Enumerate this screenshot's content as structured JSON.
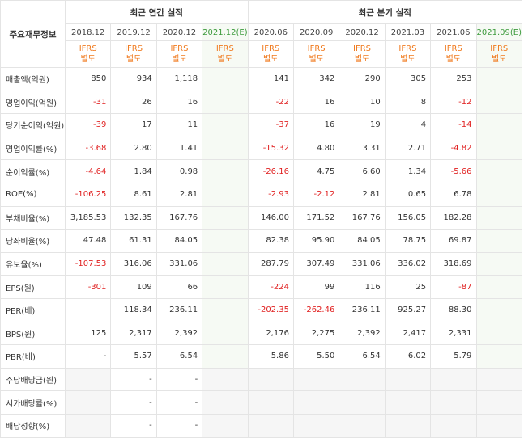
{
  "header": {
    "corner_label": "주요재무정보",
    "annual_group": "최근 연간 실적",
    "quarter_group": "최근 분기 실적",
    "periods": [
      "2018.12",
      "2019.12",
      "2020.12",
      "2021.12(E)",
      "2020.06",
      "2020.09",
      "2020.12",
      "2021.03",
      "2021.06",
      "2021.09(E)"
    ],
    "ifrs_line1": "IFRS",
    "ifrs_line2": "별도"
  },
  "rows": [
    {
      "label": "매출액(억원)",
      "values": [
        "850",
        "934",
        "1,118",
        "",
        "141",
        "342",
        "290",
        "305",
        "253",
        ""
      ]
    },
    {
      "label": "영업이익(억원)",
      "values": [
        "-31",
        "26",
        "16",
        "",
        "-22",
        "16",
        "10",
        "8",
        "-12",
        ""
      ]
    },
    {
      "label": "당기순이익(억원)",
      "values": [
        "-39",
        "17",
        "11",
        "",
        "-37",
        "16",
        "19",
        "4",
        "-14",
        ""
      ]
    },
    {
      "label": "영업이익률(%)",
      "values": [
        "-3.68",
        "2.80",
        "1.41",
        "",
        "-15.32",
        "4.80",
        "3.31",
        "2.71",
        "-4.82",
        ""
      ]
    },
    {
      "label": "순이익률(%)",
      "values": [
        "-4.64",
        "1.84",
        "0.98",
        "",
        "-26.16",
        "4.75",
        "6.60",
        "1.34",
        "-5.66",
        ""
      ]
    },
    {
      "label": "ROE(%)",
      "values": [
        "-106.25",
        "8.61",
        "2.81",
        "",
        "-2.93",
        "-2.12",
        "2.81",
        "0.65",
        "6.78",
        ""
      ]
    },
    {
      "label": "부채비율(%)",
      "values": [
        "3,185.53",
        "132.35",
        "167.76",
        "",
        "146.00",
        "171.52",
        "167.76",
        "156.05",
        "182.28",
        ""
      ]
    },
    {
      "label": "당좌비율(%)",
      "values": [
        "47.48",
        "61.31",
        "84.05",
        "",
        "82.38",
        "95.90",
        "84.05",
        "78.75",
        "69.87",
        ""
      ]
    },
    {
      "label": "유보율(%)",
      "values": [
        "-107.53",
        "316.06",
        "331.06",
        "",
        "287.79",
        "307.49",
        "331.06",
        "336.02",
        "318.69",
        ""
      ]
    },
    {
      "label": "EPS(원)",
      "values": [
        "-301",
        "109",
        "66",
        "",
        "-224",
        "99",
        "116",
        "25",
        "-87",
        ""
      ]
    },
    {
      "label": "PER(배)",
      "values": [
        "",
        "118.34",
        "236.11",
        "",
        "-202.35",
        "-262.46",
        "236.11",
        "925.27",
        "88.30",
        ""
      ]
    },
    {
      "label": "BPS(원)",
      "values": [
        "125",
        "2,317",
        "2,392",
        "",
        "2,176",
        "2,275",
        "2,392",
        "2,417",
        "2,331",
        ""
      ]
    },
    {
      "label": "PBR(배)",
      "values": [
        "-",
        "5.57",
        "6.54",
        "",
        "5.86",
        "5.50",
        "6.54",
        "6.02",
        "5.79",
        ""
      ]
    },
    {
      "label": "주당배당금(원)",
      "values": [
        "",
        "-",
        "-",
        "",
        "",
        "",
        "",
        "",
        "",
        ""
      ]
    },
    {
      "label": "시가배당률(%)",
      "values": [
        "",
        "-",
        "-",
        "",
        "",
        "",
        "",
        "",
        "",
        ""
      ]
    },
    {
      "label": "배당성향(%)",
      "values": [
        "",
        "-",
        "-",
        "",
        "",
        "",
        "",
        "",
        "",
        ""
      ]
    }
  ],
  "colors": {
    "negative": "#e01e1e",
    "ifrs": "#f07a1e",
    "estimate_header": "#3c9a3c",
    "estimate_bg": "#f6faf4"
  }
}
